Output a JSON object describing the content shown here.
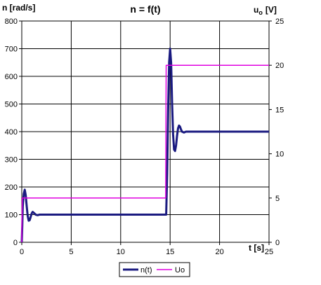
{
  "chart_data": {
    "type": "line",
    "title": "n = f(t)",
    "xlabel": "t [s]",
    "ylabel_left": "n [rad/s]",
    "ylabel_right_main": "u",
    "ylabel_right_sub": "o",
    "ylabel_right_unit": "[V]",
    "xlim": [
      0,
      25
    ],
    "ylim_left": [
      0,
      800
    ],
    "ylim_right": [
      0,
      25
    ],
    "x_ticks": [
      "0",
      "5",
      "10",
      "15",
      "20",
      "25"
    ],
    "y_ticks_left": [
      "0",
      "100",
      "200",
      "300",
      "400",
      "500",
      "600",
      "700",
      "800"
    ],
    "y_ticks_right": [
      "0",
      "5",
      "10",
      "15",
      "20",
      "25"
    ],
    "grid": true,
    "legend_position": "bottom",
    "series": [
      {
        "name": "n(t)",
        "axis": "left",
        "color": "#1a1a80",
        "points": [
          [
            0,
            0
          ],
          [
            0.05,
            60
          ],
          [
            0.1,
            130
          ],
          [
            0.2,
            175
          ],
          [
            0.3,
            190
          ],
          [
            0.4,
            170
          ],
          [
            0.5,
            130
          ],
          [
            0.6,
            95
          ],
          [
            0.7,
            78
          ],
          [
            0.8,
            80
          ],
          [
            0.9,
            92
          ],
          [
            1.0,
            104
          ],
          [
            1.1,
            110
          ],
          [
            1.2,
            107
          ],
          [
            1.4,
            100
          ],
          [
            1.6,
            98
          ],
          [
            1.8,
            100
          ],
          [
            2.5,
            100
          ],
          [
            5,
            100
          ],
          [
            10,
            100
          ],
          [
            14.5,
            100
          ],
          [
            14.6,
            100
          ],
          [
            14.7,
            250
          ],
          [
            14.8,
            480
          ],
          [
            14.9,
            650
          ],
          [
            15.0,
            700
          ],
          [
            15.1,
            650
          ],
          [
            15.2,
            500
          ],
          [
            15.3,
            390
          ],
          [
            15.4,
            335
          ],
          [
            15.5,
            330
          ],
          [
            15.6,
            350
          ],
          [
            15.7,
            385
          ],
          [
            15.8,
            412
          ],
          [
            15.9,
            422
          ],
          [
            16.0,
            418
          ],
          [
            16.1,
            408
          ],
          [
            16.2,
            400
          ],
          [
            16.4,
            397
          ],
          [
            16.6,
            400
          ],
          [
            17,
            400
          ],
          [
            20,
            400
          ],
          [
            25,
            400
          ]
        ]
      },
      {
        "name": "Uo",
        "axis": "right",
        "color": "#e000e0",
        "points": [
          [
            0,
            0
          ],
          [
            0.05,
            5
          ],
          [
            10,
            5
          ],
          [
            14.5,
            5
          ],
          [
            14.55,
            5
          ],
          [
            14.6,
            20
          ],
          [
            25,
            20
          ]
        ]
      }
    ]
  }
}
